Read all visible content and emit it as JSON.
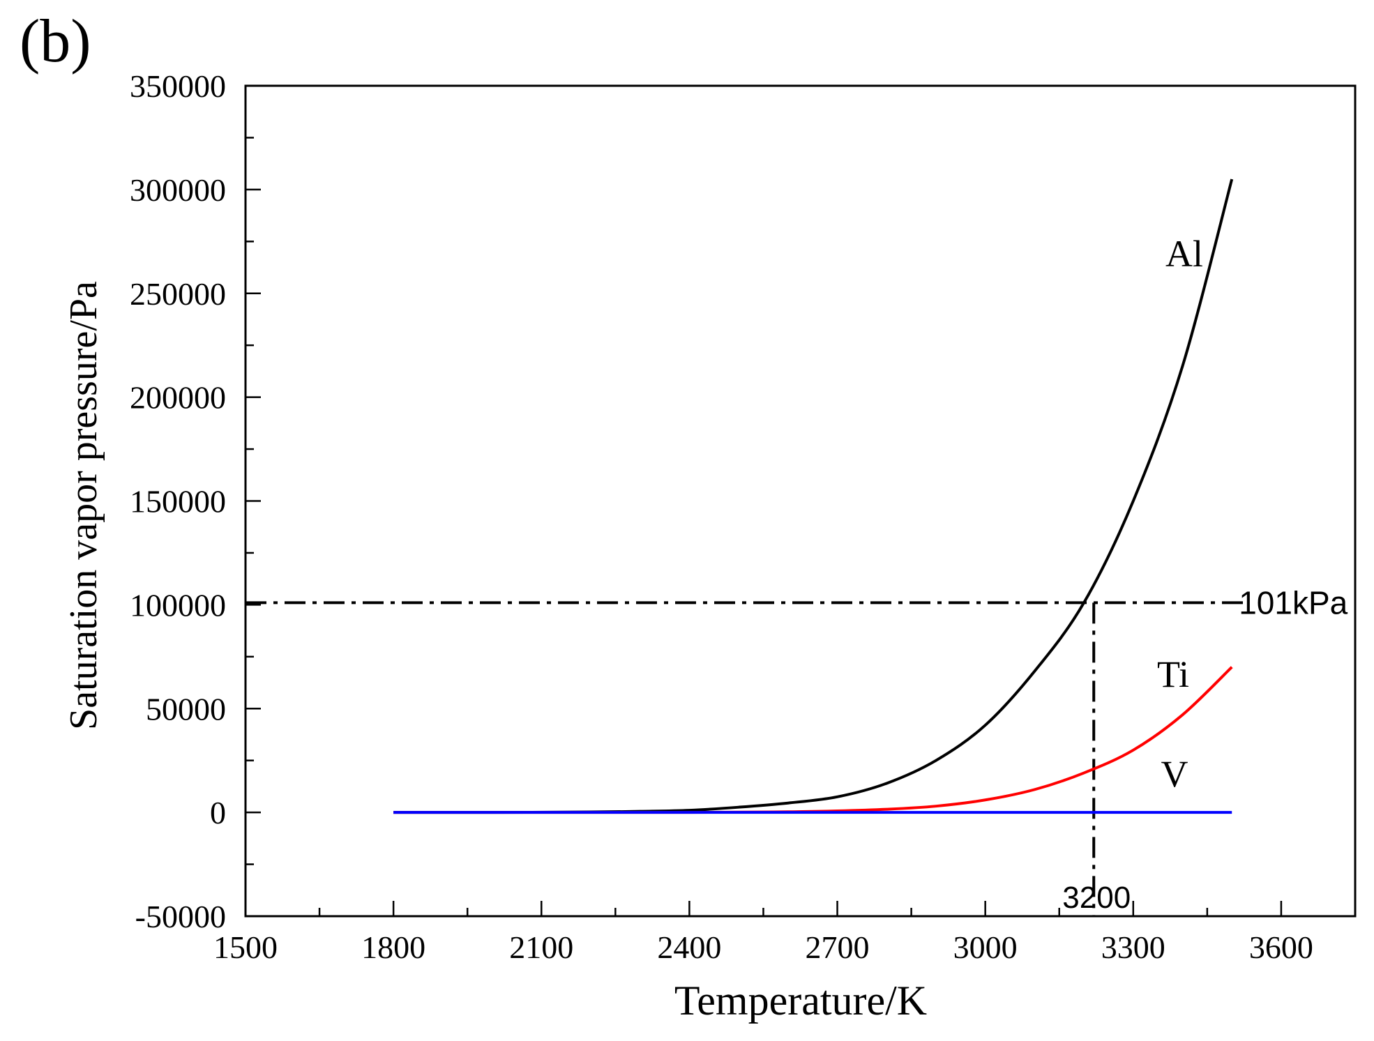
{
  "panel_label": "(b)",
  "chart_data": {
    "type": "line",
    "xlabel": "Temperature/K",
    "ylabel": "Saturation vapor pressure/Pa",
    "xlim": [
      1500,
      3750
    ],
    "ylim": [
      -50000,
      350000
    ],
    "x_ticks": [
      1500,
      1800,
      2100,
      2400,
      2700,
      3000,
      3300,
      3600
    ],
    "y_ticks": [
      -50000,
      0,
      50000,
      100000,
      150000,
      200000,
      250000,
      300000,
      350000
    ],
    "x_tick_labels": [
      "1500",
      "1800",
      "2100",
      "2400",
      "2700",
      "3000",
      "3300",
      "3600"
    ],
    "y_tick_labels": [
      "-50000",
      "0",
      "50000",
      "100000",
      "150000",
      "200000",
      "250000",
      "300000",
      "350000"
    ],
    "series": [
      {
        "name": "Al",
        "color": "#000000",
        "x": [
          1800,
          2000,
          2200,
          2300,
          2400,
          2500,
          2600,
          2700,
          2800,
          2900,
          3000,
          3100,
          3200,
          3300,
          3400,
          3500
        ],
        "y": [
          0,
          0,
          200,
          500,
          1000,
          2500,
          4500,
          7500,
          14000,
          25000,
          42000,
          68000,
          101000,
          150000,
          215000,
          305000
        ]
      },
      {
        "name": "Ti",
        "color": "#ff0000",
        "x": [
          1800,
          2400,
          2600,
          2700,
          2800,
          2900,
          3000,
          3100,
          3200,
          3300,
          3400,
          3500
        ],
        "y": [
          0,
          0,
          300,
          700,
          1500,
          3000,
          6000,
          11000,
          19000,
          30000,
          47000,
          70000
        ]
      },
      {
        "name": "V",
        "color": "#0000ff",
        "x": [
          1800,
          3500
        ],
        "y": [
          0,
          0
        ]
      }
    ],
    "annotations": [
      {
        "type": "hline",
        "y": 101000,
        "style": "dash-dot",
        "label": "101kPa"
      },
      {
        "type": "vline",
        "x": 3220,
        "y_from": -50000,
        "y_to": 101000,
        "style": "dash-dot",
        "label": "3200"
      }
    ]
  }
}
